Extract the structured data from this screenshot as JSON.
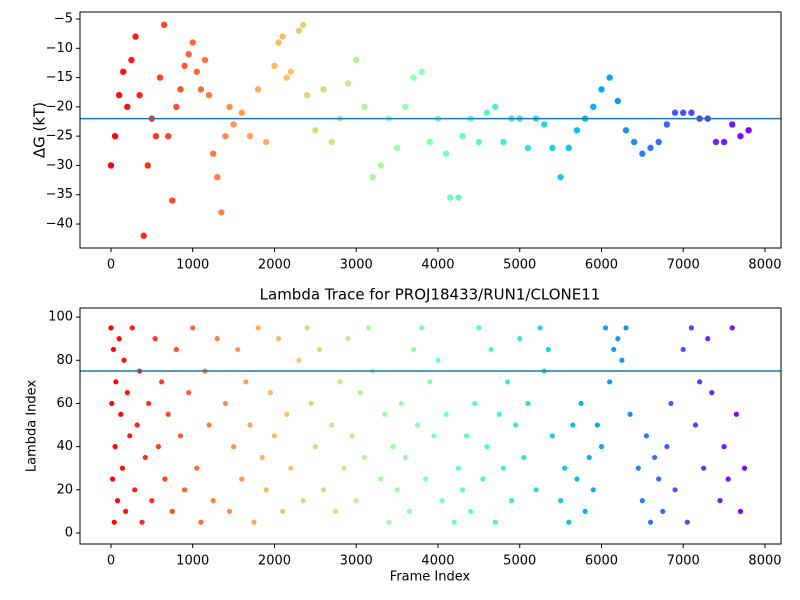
{
  "chart_data": [
    {
      "type": "scatter",
      "ylabel": "ΔG (kT)",
      "colormap": "rainbow_r",
      "hline": -22,
      "hline_color": "#1f77b4",
      "x": [
        0,
        50,
        100,
        150,
        200,
        250,
        300,
        350,
        400,
        450,
        500,
        550,
        600,
        650,
        700,
        750,
        800,
        850,
        900,
        950,
        1000,
        1050,
        1100,
        1150,
        1200,
        1250,
        1300,
        1350,
        1400,
        1450,
        1500,
        1600,
        1700,
        1800,
        1900,
        2000,
        2050,
        2100,
        2150,
        2200,
        2300,
        2350,
        2400,
        2500,
        2600,
        2700,
        2800,
        2900,
        3000,
        3100,
        3200,
        3300,
        3400,
        3500,
        3600,
        3700,
        3800,
        3900,
        4000,
        4100,
        4150,
        4250,
        4300,
        4400,
        4500,
        4600,
        4700,
        4800,
        4900,
        5000,
        5100,
        5200,
        5300,
        5400,
        5500,
        5600,
        5700,
        5800,
        5900,
        6000,
        6100,
        6200,
        6300,
        6400,
        6500,
        6600,
        6700,
        6800,
        6900,
        7000,
        7100,
        7200,
        7300,
        7400,
        7500,
        7600,
        7700,
        7800
      ],
      "values": [
        -30,
        -25,
        -18,
        -14,
        -20,
        -12,
        -8,
        -18,
        -42,
        -30,
        -22,
        -25,
        -15,
        -6,
        -25,
        -36,
        -20,
        -17,
        -13,
        -11,
        -9,
        -14,
        -17,
        -12,
        -18,
        -28,
        -32,
        -38,
        -25,
        -20,
        -23,
        -21,
        -25,
        -17,
        -26,
        -13,
        -9,
        -8,
        -15,
        -14,
        -7,
        -6,
        -18,
        -24,
        -17,
        -26,
        -22,
        -16,
        -12,
        -20,
        -32,
        -30,
        -22,
        -27,
        -20,
        -15,
        -14,
        -26,
        -22,
        -28,
        -35.5,
        -35.5,
        -25,
        -22,
        -26,
        -21,
        -20,
        -26,
        -22,
        -22,
        -27,
        -22,
        -23,
        -27,
        -32,
        -27,
        -24,
        -22,
        -20,
        -17,
        -15,
        -19,
        -24,
        -26,
        -28,
        -27,
        -26,
        -23,
        -21,
        -21,
        -21,
        -22,
        -22,
        -26,
        -26,
        -23,
        -25,
        -24
      ],
      "xlim": [
        -379,
        8196
      ],
      "xticks": [
        0,
        1000,
        2000,
        3000,
        4000,
        5000,
        6000,
        7000,
        8000
      ],
      "ylim": [
        -44.1,
        -3.8
      ],
      "yticks": [
        {
          "value": -40,
          "label": "−40"
        },
        {
          "value": -35,
          "label": "−35"
        },
        {
          "value": -30,
          "label": "−30"
        },
        {
          "value": -25,
          "label": "−25"
        },
        {
          "value": -20,
          "label": "−20"
        },
        {
          "value": -15,
          "label": "−15"
        },
        {
          "value": -10,
          "label": "−10"
        },
        {
          "value": -5,
          "label": "−5"
        }
      ]
    },
    {
      "type": "scatter",
      "title": "Lambda Trace for PROJ18433/RUN1/CLONE11",
      "xlabel": "Frame Index",
      "ylabel": "Lambda Index",
      "colormap": "rainbow_r",
      "hline": 75,
      "hline_color": "#1f77b4",
      "x": [
        0,
        10,
        20,
        30,
        40,
        50,
        60,
        80,
        100,
        120,
        140,
        160,
        180,
        200,
        230,
        260,
        290,
        320,
        350,
        380,
        420,
        460,
        500,
        540,
        580,
        620,
        660,
        700,
        750,
        800,
        850,
        900,
        950,
        1000,
        1050,
        1100,
        1150,
        1200,
        1250,
        1300,
        1400,
        1450,
        1500,
        1550,
        1600,
        1650,
        1700,
        1750,
        1800,
        1850,
        1900,
        1950,
        2000,
        2050,
        2100,
        2150,
        2200,
        2300,
        2350,
        2400,
        2450,
        2500,
        2550,
        2600,
        2700,
        2750,
        2800,
        2850,
        2900,
        2950,
        3000,
        3050,
        3100,
        3150,
        3200,
        3300,
        3350,
        3400,
        3450,
        3500,
        3550,
        3600,
        3650,
        3700,
        3750,
        3800,
        3850,
        3900,
        3950,
        4000,
        4050,
        4100,
        4200,
        4250,
        4300,
        4350,
        4400,
        4450,
        4500,
        4550,
        4600,
        4650,
        4700,
        4750,
        4800,
        4850,
        4900,
        4950,
        5000,
        5050,
        5100,
        5200,
        5250,
        5300,
        5350,
        5400,
        5500,
        5550,
        5600,
        5650,
        5700,
        5750,
        5800,
        5850,
        5900,
        5950,
        6000,
        6050,
        6100,
        6150,
        6200,
        6250,
        6300,
        6350,
        6450,
        6500,
        6550,
        6600,
        6650,
        6700,
        6750,
        6800,
        6850,
        6900,
        7000,
        7050,
        7100,
        7150,
        7200,
        7250,
        7300,
        7350,
        7450,
        7500,
        7550,
        7600,
        7650,
        7700,
        7750
      ],
      "values": [
        95,
        60,
        25,
        85,
        5,
        40,
        70,
        15,
        90,
        55,
        30,
        80,
        10,
        65,
        45,
        95,
        20,
        50,
        75,
        5,
        35,
        60,
        15,
        90,
        40,
        70,
        25,
        55,
        10,
        85,
        45,
        20,
        65,
        95,
        30,
        5,
        75,
        50,
        15,
        90,
        60,
        10,
        40,
        85,
        25,
        70,
        50,
        5,
        95,
        35,
        20,
        65,
        45,
        90,
        10,
        55,
        30,
        80,
        15,
        95,
        60,
        40,
        85,
        20,
        50,
        10,
        70,
        30,
        90,
        45,
        15,
        65,
        35,
        95,
        75,
        25,
        55,
        5,
        40,
        20,
        60,
        35,
        10,
        85,
        50,
        95,
        25,
        70,
        45,
        80,
        15,
        55,
        5,
        30,
        20,
        45,
        10,
        60,
        95,
        25,
        40,
        85,
        5,
        55,
        30,
        70,
        15,
        50,
        90,
        35,
        60,
        20,
        95,
        75,
        85,
        45,
        15,
        30,
        5,
        50,
        25,
        60,
        10,
        35,
        20,
        50,
        40,
        95,
        70,
        85,
        90,
        80,
        95,
        55,
        30,
        15,
        45,
        5,
        35,
        25,
        10,
        40,
        60,
        20,
        85,
        5,
        95,
        50,
        70,
        30,
        90,
        65,
        15,
        40,
        25,
        95,
        55,
        10,
        30
      ],
      "xlim": [
        -379,
        8196
      ],
      "xticks": [
        0,
        1000,
        2000,
        3000,
        4000,
        5000,
        6000,
        7000,
        8000
      ],
      "ylim": [
        -5.1,
        104.2
      ],
      "yticks": [
        0,
        20,
        40,
        60,
        80,
        100
      ]
    }
  ]
}
